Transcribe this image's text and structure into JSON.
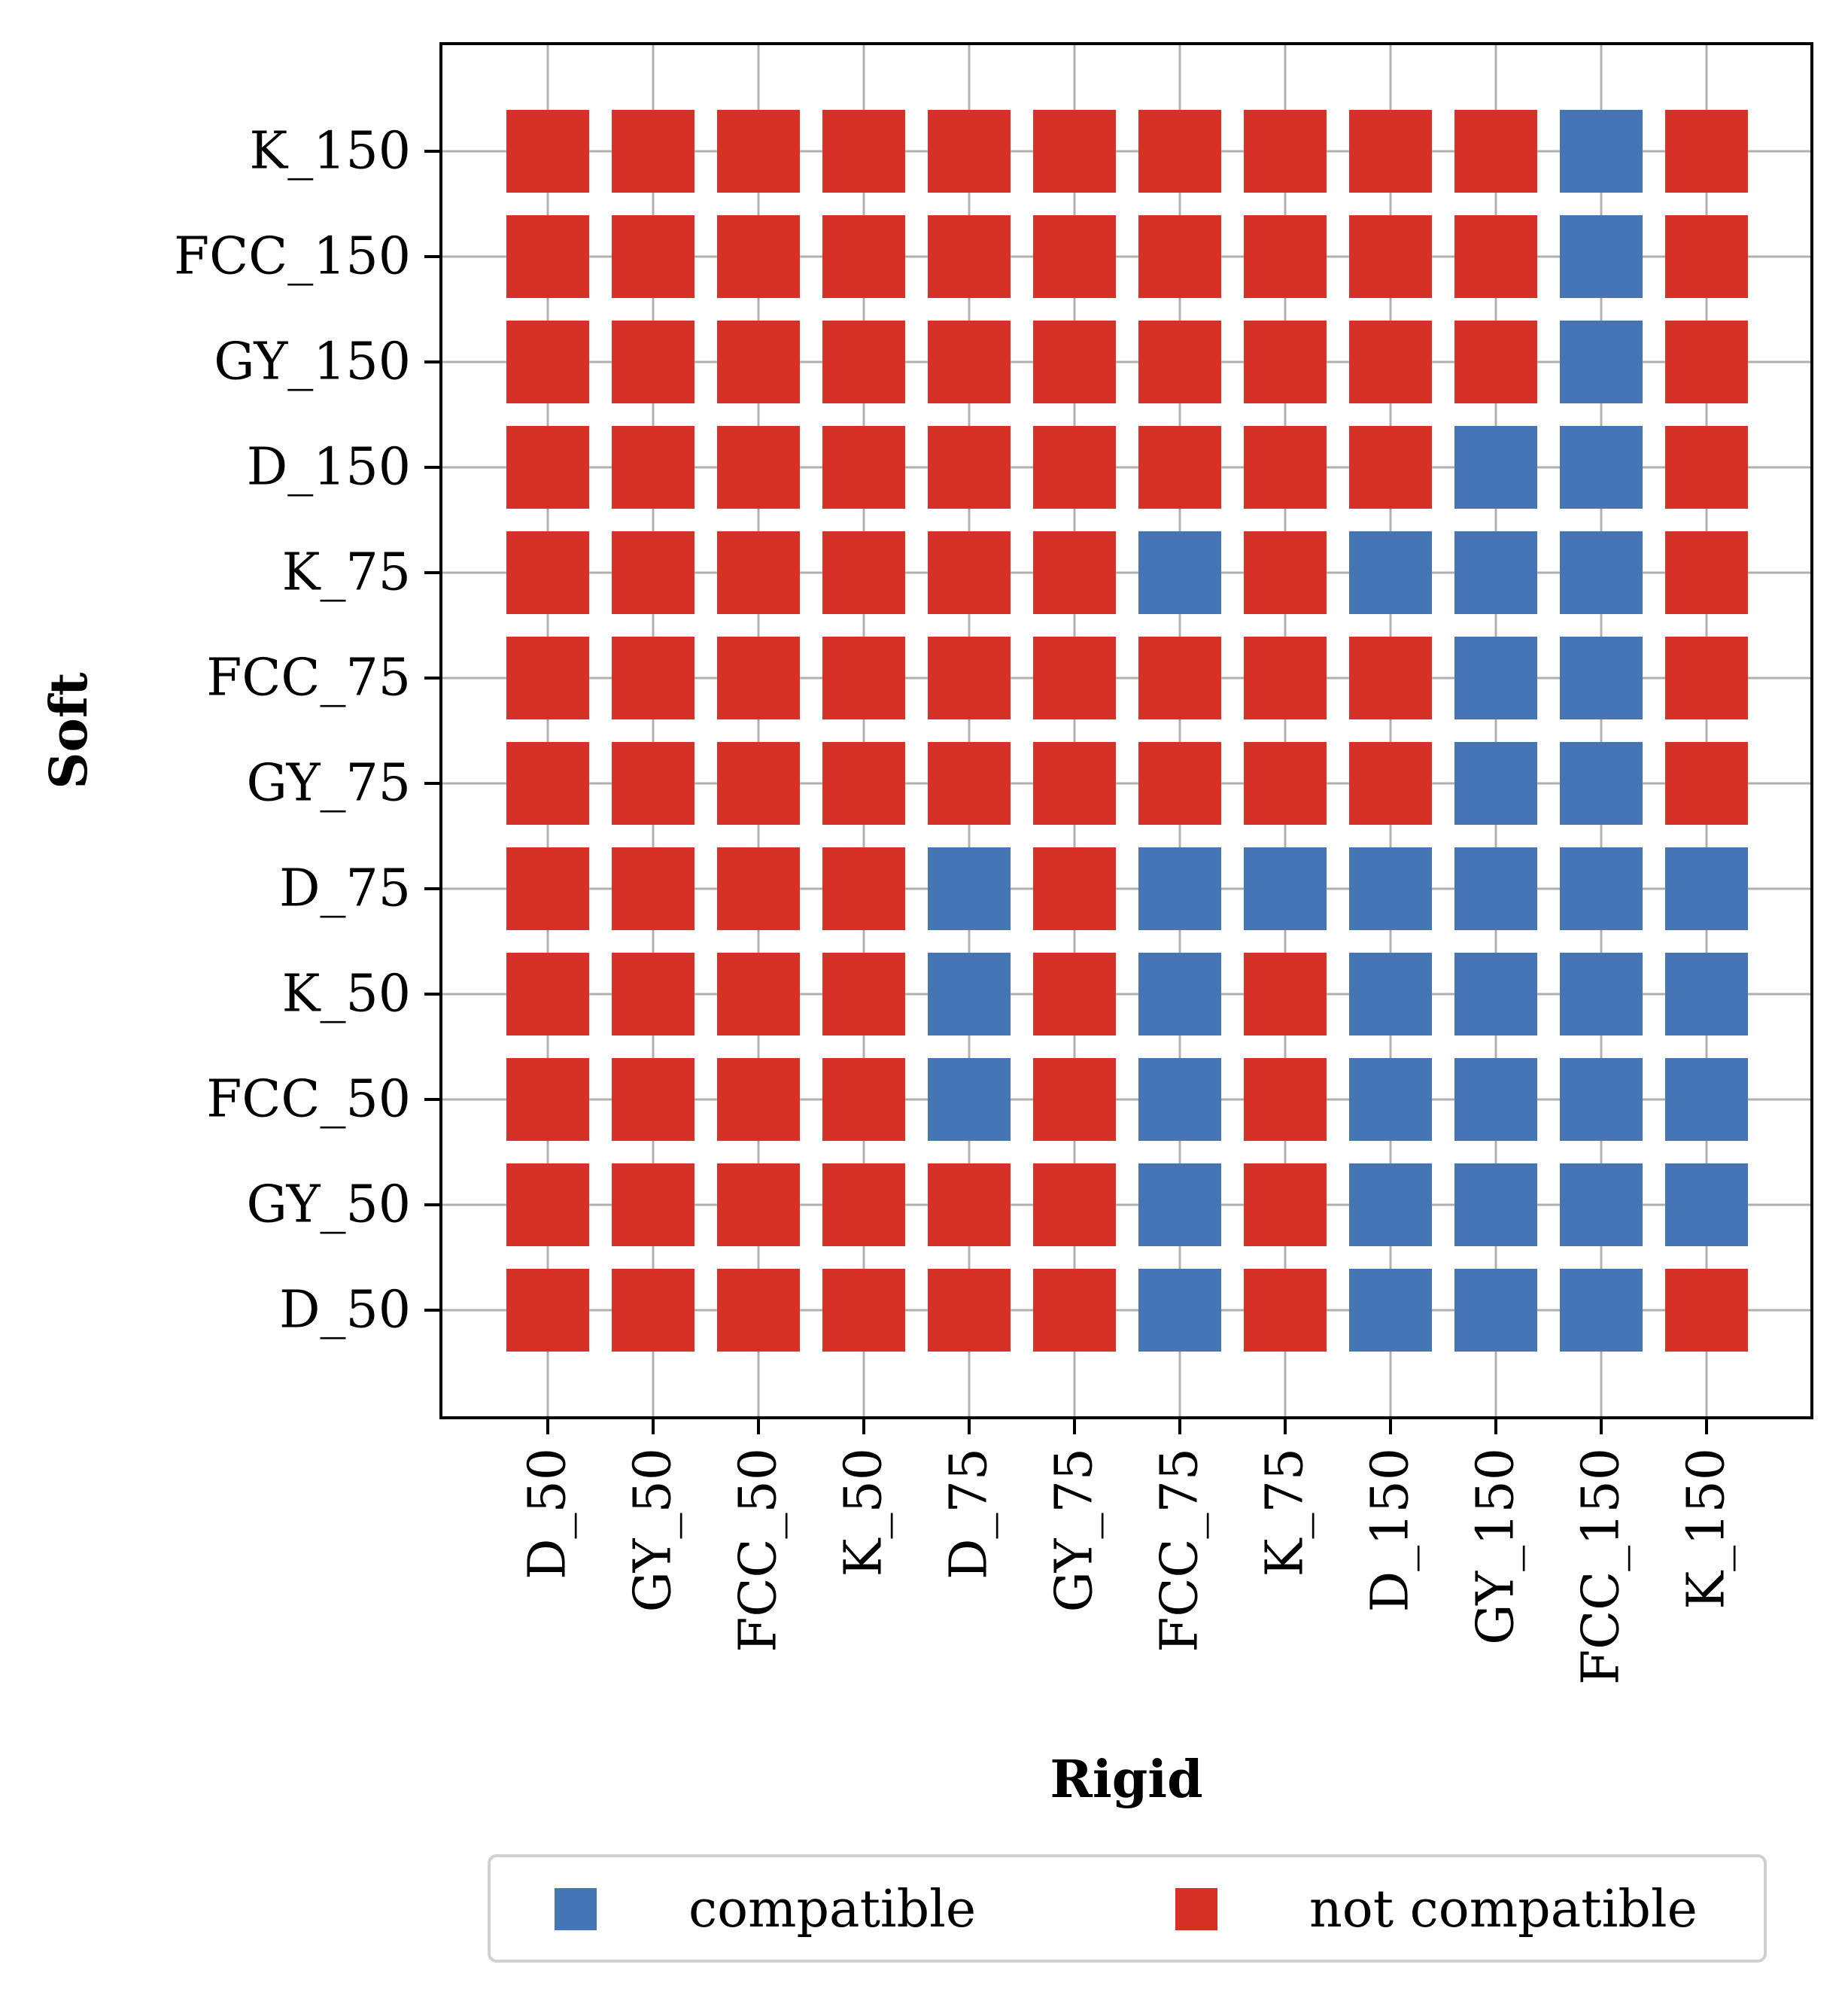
{
  "chart_data": {
    "type": "heatmap",
    "title": "",
    "xlabel": "Rigid",
    "ylabel": "Soft",
    "x_categories": [
      "D_50",
      "GY_50",
      "FCC_50",
      "K_50",
      "D_75",
      "GY_75",
      "FCC_75",
      "K_75",
      "D_150",
      "GY_150",
      "FCC_150",
      "K_150"
    ],
    "y_categories": [
      "D_50",
      "GY_50",
      "FCC_50",
      "K_50",
      "D_75",
      "GY_75",
      "FCC_75",
      "K_75",
      "D_150",
      "GY_150",
      "FCC_150",
      "K_150"
    ],
    "values_by_soft": {
      "D_50": [
        0,
        0,
        0,
        0,
        0,
        0,
        1,
        0,
        1,
        1,
        1,
        0
      ],
      "GY_50": [
        0,
        0,
        0,
        0,
        0,
        0,
        1,
        0,
        1,
        1,
        1,
        1
      ],
      "FCC_50": [
        0,
        0,
        0,
        0,
        1,
        0,
        1,
        0,
        1,
        1,
        1,
        1
      ],
      "K_50": [
        0,
        0,
        0,
        0,
        1,
        0,
        1,
        0,
        1,
        1,
        1,
        1
      ],
      "D_75": [
        0,
        0,
        0,
        0,
        1,
        0,
        1,
        1,
        1,
        1,
        1,
        1
      ],
      "GY_75": [
        0,
        0,
        0,
        0,
        0,
        0,
        0,
        0,
        0,
        1,
        1,
        0
      ],
      "FCC_75": [
        0,
        0,
        0,
        0,
        0,
        0,
        0,
        0,
        0,
        1,
        1,
        0
      ],
      "K_75": [
        0,
        0,
        0,
        0,
        0,
        0,
        1,
        0,
        1,
        1,
        1,
        0
      ],
      "D_150": [
        0,
        0,
        0,
        0,
        0,
        0,
        0,
        0,
        0,
        1,
        1,
        0
      ],
      "GY_150": [
        0,
        0,
        0,
        0,
        0,
        0,
        0,
        0,
        0,
        0,
        1,
        0
      ],
      "FCC_150": [
        0,
        0,
        0,
        0,
        0,
        0,
        0,
        0,
        0,
        0,
        1,
        0
      ],
      "K_150": [
        0,
        0,
        0,
        0,
        0,
        0,
        0,
        0,
        0,
        0,
        1,
        0
      ]
    },
    "value_meaning": {
      "1": "compatible",
      "0": "not compatible"
    },
    "grid": true,
    "legend": {
      "placement": "bottom",
      "entries": [
        {
          "label": "compatible",
          "color": "#4575b4"
        },
        {
          "label": "not compatible",
          "color": "#d73027"
        }
      ]
    }
  },
  "colors": {
    "compatible": "#4575b4",
    "not_compatible": "#d73027",
    "grid": "#b0b0b0",
    "axes": "#000000"
  }
}
